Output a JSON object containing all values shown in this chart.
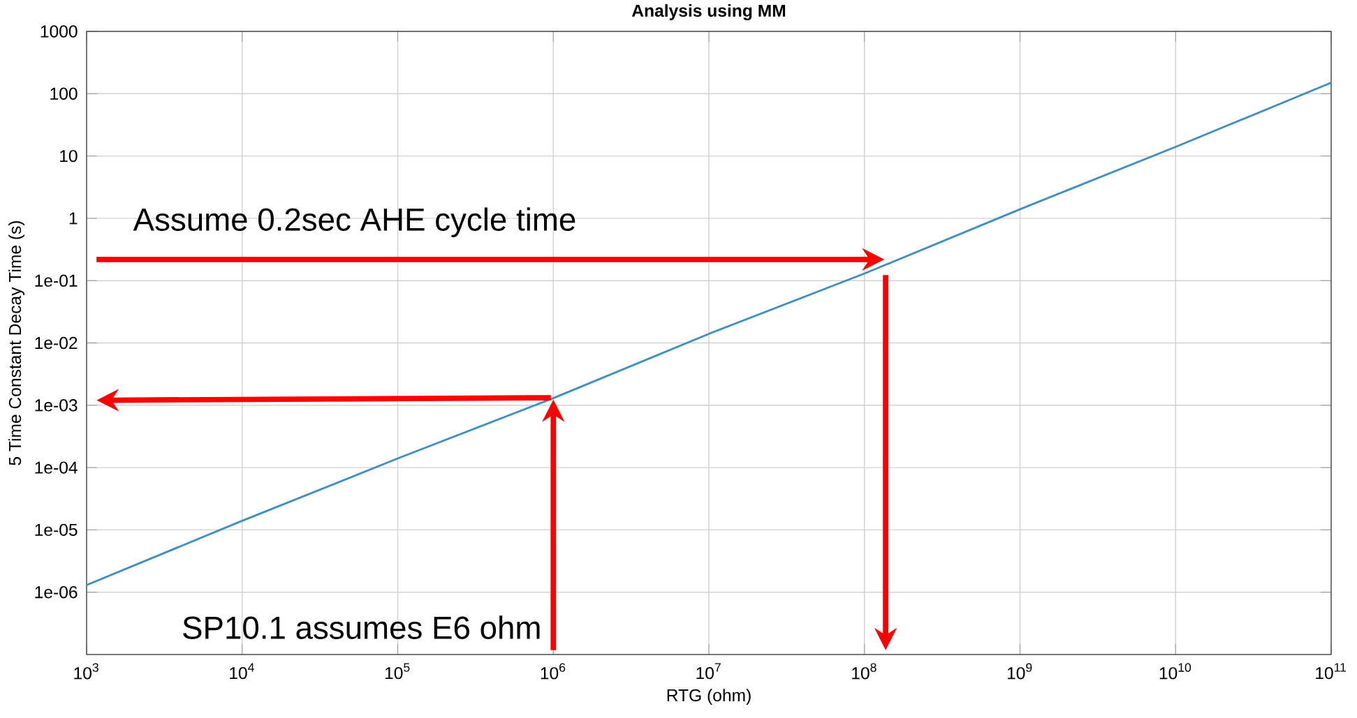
{
  "chart_data": {
    "type": "line",
    "title": "Analysis using MM",
    "xlabel": "RTG (ohm)",
    "ylabel": "5 Time Constant Decay Time (s)",
    "log": "xy",
    "grid": true,
    "xlim": [
      1000,
      100000000000
    ],
    "ylim": [
      1e-07,
      1000
    ],
    "xticks": [
      {
        "value": 1000,
        "label": "10$^{3}$"
      },
      {
        "value": 10000,
        "label": "10$^{4}$"
      },
      {
        "value": 100000,
        "label": "10$^{5}$"
      },
      {
        "value": 1000000,
        "label": "10$^{6}$"
      },
      {
        "value": 10000000,
        "label": "10$^{7}$"
      },
      {
        "value": 100000000,
        "label": "10$^{8}$"
      },
      {
        "value": 1000000000,
        "label": "10$^{9}$"
      },
      {
        "value": 10000000000,
        "label": "10$^{10}$"
      },
      {
        "value": 100000000000,
        "label": "10$^{11}$"
      }
    ],
    "yticks": [
      {
        "value": 1e-06,
        "label": "1e-06"
      },
      {
        "value": 1e-05,
        "label": "1e-05"
      },
      {
        "value": 0.0001,
        "label": "1e-04"
      },
      {
        "value": 0.001,
        "label": "1e-03"
      },
      {
        "value": 0.01,
        "label": "1e-02"
      },
      {
        "value": 0.1,
        "label": "1e-01"
      },
      1,
      10,
      100,
      1000
    ],
    "x": [
      1000,
      10000,
      100000,
      1000000,
      10000000,
      100000000,
      1000000000,
      10000000000,
      100000000000
    ],
    "series": [
      {
        "color": "#3d8fc0",
        "values": [
          1.3e-06,
          1.4e-05,
          0.00014,
          0.0013,
          0.014,
          0.13,
          1.4,
          14,
          150
        ]
      }
    ],
    "annotations": [
      "Assume 0.2sec AHE cycle time",
      "SP10.1 assumes E6 ohm"
    ]
  }
}
